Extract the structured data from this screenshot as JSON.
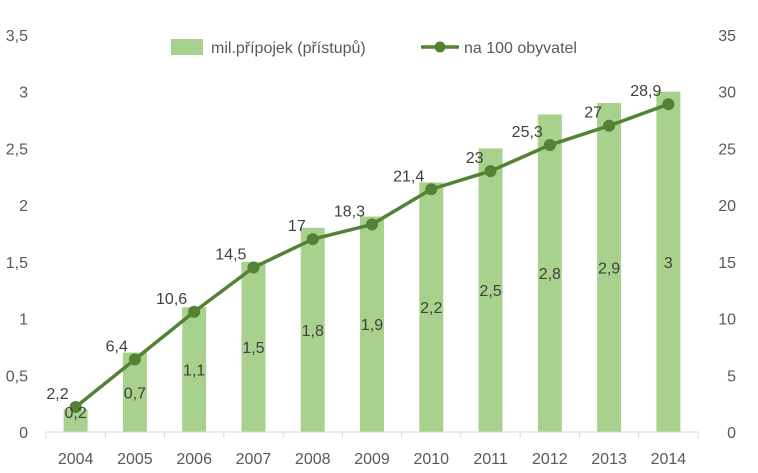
{
  "chart_data": {
    "type": "bar",
    "categories": [
      "2004",
      "2005",
      "2006",
      "2007",
      "2008",
      "2009",
      "2010",
      "2011",
      "2012",
      "2013",
      "2014"
    ],
    "series": [
      {
        "name": "mil.přípojek (přístupů)",
        "type": "bar",
        "axis": "left",
        "values": [
          0.2,
          0.7,
          1.1,
          1.5,
          1.8,
          1.9,
          2.2,
          2.5,
          2.8,
          2.9,
          3
        ],
        "labels": [
          "0,2",
          "0,7",
          "1,1",
          "1,5",
          "1,8",
          "1,9",
          "2,2",
          "2,5",
          "2,8",
          "2,9",
          "3"
        ]
      },
      {
        "name": "na 100 obyvatel",
        "type": "line",
        "axis": "right",
        "values": [
          2.2,
          6.4,
          10.6,
          14.5,
          17,
          18.3,
          21.4,
          23,
          25.3,
          27,
          28.9
        ],
        "labels": [
          "2,2",
          "6,4",
          "10,6",
          "14,5",
          "17",
          "18,3",
          "21,4",
          "23",
          "25,3",
          "27",
          "28,9"
        ]
      }
    ],
    "y_left": {
      "ylim": [
        0,
        3.5
      ],
      "ticks": [
        0,
        0.5,
        1,
        1.5,
        2,
        2.5,
        3,
        3.5
      ],
      "tick_labels": [
        "0",
        "0,5",
        "1",
        "1,5",
        "2",
        "2,5",
        "3",
        "3,5"
      ]
    },
    "y_right": {
      "ylim": [
        0,
        35
      ],
      "ticks": [
        0,
        5,
        10,
        15,
        20,
        25,
        30,
        35
      ],
      "tick_labels": [
        "0",
        "5",
        "10",
        "15",
        "20",
        "25",
        "30",
        "35"
      ]
    },
    "title": "",
    "xlabel": "",
    "ylabel": "",
    "grid": false,
    "legend_position": "top",
    "colors": {
      "bar": "#a9d18e",
      "line": "#548235",
      "axis": "#d9d9d9",
      "text": "#595959",
      "line_label": "#404040",
      "bar_label": "#404040"
    }
  }
}
